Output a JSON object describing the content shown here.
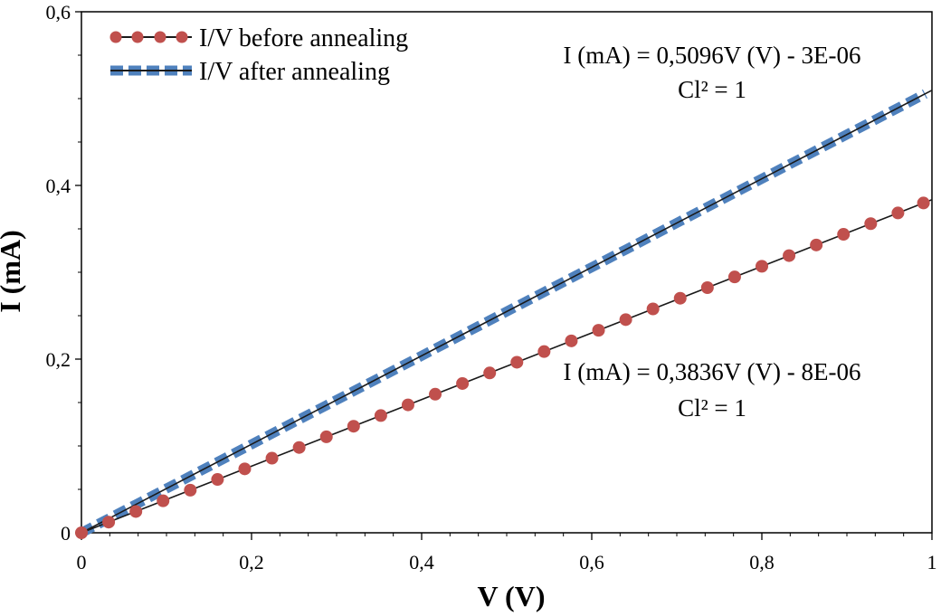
{
  "chart_data": {
    "type": "line",
    "title": "",
    "xlabel": "V (V)",
    "ylabel": "I (mA)",
    "xlim": [
      0,
      1
    ],
    "ylim": [
      0,
      0.6
    ],
    "x_ticks": [
      0,
      0.2,
      0.4,
      0.6,
      0.8,
      1
    ],
    "x_tick_labels": [
      "0",
      "0,2",
      "0,4",
      "0,6",
      "0,8",
      "1"
    ],
    "y_ticks": [
      0,
      0.2,
      0.4,
      0.6
    ],
    "y_tick_labels": [
      "0",
      "0,2",
      "0,4",
      "0,6"
    ],
    "grid": false,
    "legend_position": "top-left",
    "series": [
      {
        "name": "I/V before annealing",
        "marker": "circle",
        "color": "#c0504d",
        "x": [
          0.0,
          0.032,
          0.064,
          0.096,
          0.128,
          0.16,
          0.192,
          0.224,
          0.256,
          0.288,
          0.32,
          0.352,
          0.384,
          0.416,
          0.448,
          0.48,
          0.512,
          0.544,
          0.576,
          0.608,
          0.64,
          0.672,
          0.704,
          0.736,
          0.768,
          0.8,
          0.832,
          0.864,
          0.896,
          0.928,
          0.96,
          0.99
        ],
        "y": [
          0.0,
          0.0123,
          0.0245,
          0.0368,
          0.0491,
          0.0614,
          0.0736,
          0.0859,
          0.0982,
          0.1105,
          0.1227,
          0.135,
          0.1473,
          0.1596,
          0.1719,
          0.1841,
          0.1964,
          0.2087,
          0.221,
          0.2332,
          0.2455,
          0.2578,
          0.2701,
          0.2823,
          0.2946,
          0.3069,
          0.3192,
          0.3314,
          0.3437,
          0.356,
          0.3683,
          0.3798
        ],
        "trendline": {
          "slope": 0.3836,
          "intercept": -8e-06,
          "equation": "I (mA) = 0,3836V (V) - 8E-06",
          "r2": "Cl² = 1"
        }
      },
      {
        "name": "I/V after annealing",
        "marker": "square",
        "color": "#4f81bd",
        "x": [
          0.0,
          0.032,
          0.064,
          0.096,
          0.128,
          0.16,
          0.192,
          0.224,
          0.256,
          0.288,
          0.32,
          0.352,
          0.384,
          0.416,
          0.448,
          0.48,
          0.512,
          0.544,
          0.576,
          0.608,
          0.64,
          0.672,
          0.704,
          0.736,
          0.768,
          0.8,
          0.832,
          0.864,
          0.896,
          0.928,
          0.96,
          0.992
        ],
        "y": [
          0.0,
          0.0163,
          0.0326,
          0.0489,
          0.0652,
          0.0815,
          0.0978,
          0.1142,
          0.1305,
          0.1468,
          0.1631,
          0.1794,
          0.1957,
          0.212,
          0.2283,
          0.2446,
          0.2609,
          0.2772,
          0.2935,
          0.3098,
          0.3261,
          0.3425,
          0.3588,
          0.3751,
          0.3914,
          0.4077,
          0.424,
          0.4403,
          0.4566,
          0.4729,
          0.4892,
          0.5055
        ],
        "trendline": {
          "slope": 0.5096,
          "intercept": -3e-06,
          "equation": "I (mA) = 0,5096V (V) - 3E-06",
          "r2": "Cl² = 1"
        }
      }
    ]
  }
}
